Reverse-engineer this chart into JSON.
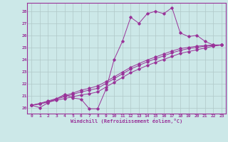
{
  "xlabel": "Windchill (Refroidissement éolien,°C)",
  "background_color": "#cce8e8",
  "grid_color": "#b0c8c8",
  "line_color": "#993399",
  "xlim": [
    -0.5,
    23.5
  ],
  "ylim": [
    19.5,
    28.7
  ],
  "yticks": [
    20,
    21,
    22,
    23,
    24,
    25,
    26,
    27,
    28
  ],
  "xticks": [
    0,
    1,
    2,
    3,
    4,
    5,
    6,
    7,
    8,
    9,
    10,
    11,
    12,
    13,
    14,
    15,
    16,
    17,
    18,
    19,
    20,
    21,
    22,
    23
  ],
  "series": [
    [
      20.2,
      20.0,
      20.4,
      20.7,
      21.1,
      20.8,
      20.7,
      19.9,
      19.9,
      21.5,
      24.0,
      25.5,
      27.5,
      27.0,
      27.8,
      28.0,
      27.8,
      28.3,
      26.2,
      25.9,
      26.0,
      25.5,
      25.2,
      25.2
    ],
    [
      20.2,
      20.3,
      20.45,
      20.6,
      20.75,
      20.9,
      21.05,
      21.15,
      21.3,
      21.7,
      22.1,
      22.5,
      22.9,
      23.2,
      23.5,
      23.75,
      24.0,
      24.25,
      24.5,
      24.65,
      24.8,
      24.95,
      25.1,
      25.2
    ],
    [
      20.2,
      20.3,
      20.5,
      20.7,
      20.9,
      21.1,
      21.3,
      21.45,
      21.6,
      22.0,
      22.4,
      22.8,
      23.2,
      23.5,
      23.8,
      24.05,
      24.3,
      24.55,
      24.75,
      24.9,
      25.0,
      25.1,
      25.15,
      25.2
    ],
    [
      20.2,
      20.35,
      20.55,
      20.75,
      21.0,
      21.2,
      21.45,
      21.6,
      21.8,
      22.15,
      22.55,
      22.95,
      23.35,
      23.65,
      23.95,
      24.2,
      24.45,
      24.7,
      24.9,
      25.0,
      25.1,
      25.15,
      25.2,
      25.2
    ]
  ]
}
